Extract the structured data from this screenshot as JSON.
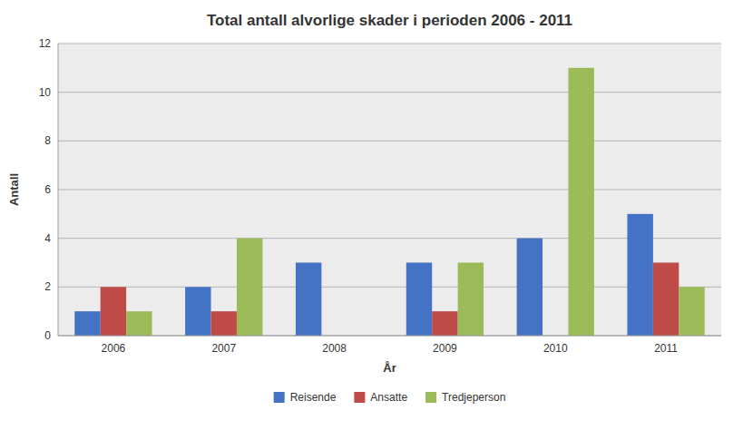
{
  "chart_data": {
    "type": "bar",
    "title": "Total antall alvorlige skader i perioden 2006 - 2011",
    "xlabel": "År",
    "ylabel": "Antall",
    "categories": [
      "2006",
      "2007",
      "2008",
      "2009",
      "2010",
      "2011"
    ],
    "series": [
      {
        "name": "Reisende",
        "color": "#4472C4",
        "values": [
          1,
          2,
          3,
          3,
          4,
          5
        ]
      },
      {
        "name": "Ansatte",
        "color": "#BE4B48",
        "values": [
          2,
          1,
          0,
          1,
          0,
          3
        ]
      },
      {
        "name": "Tredjeperson",
        "color": "#9BBB59",
        "values": [
          1,
          4,
          0,
          3,
          11,
          2
        ]
      }
    ],
    "ylim": [
      0,
      12
    ],
    "yticks": [
      0,
      2,
      4,
      6,
      8,
      10,
      12
    ],
    "grid": true,
    "legend": "bottom"
  }
}
